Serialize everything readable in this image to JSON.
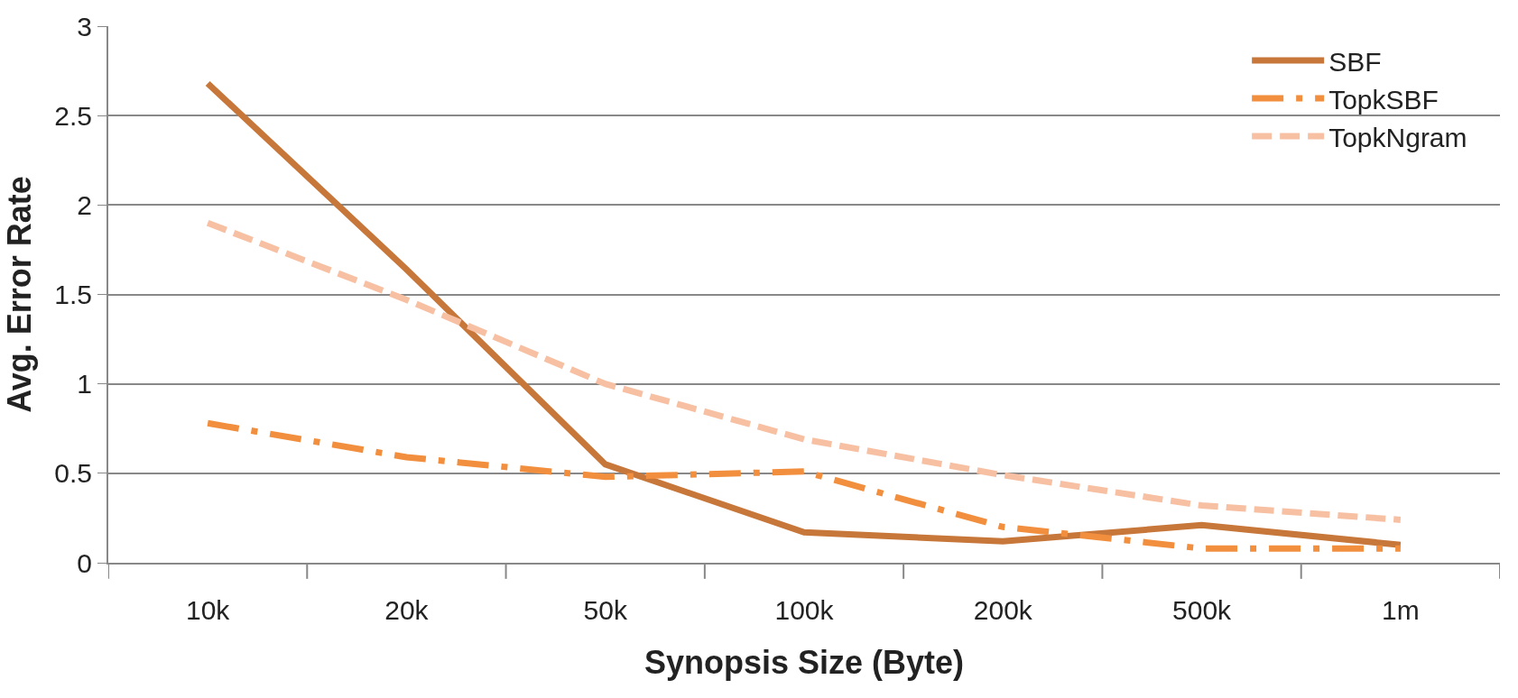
{
  "chart_data": {
    "type": "line",
    "xlabel": "Synopsis Size (Byte)",
    "ylabel": "Avg. Error Rate",
    "categories": [
      "10k",
      "20k",
      "50k",
      "100k",
      "200k",
      "500k",
      "1m"
    ],
    "series": [
      {
        "name": "SBF",
        "color": "#c8773a",
        "line_style": "solid",
        "values": [
          2.68,
          1.64,
          0.55,
          0.17,
          0.12,
          0.21,
          0.1
        ]
      },
      {
        "name": "TopkSBF",
        "color": "#f28f3e",
        "line_style": "dashdot",
        "values": [
          0.78,
          0.59,
          0.48,
          0.51,
          0.2,
          0.08,
          0.08
        ]
      },
      {
        "name": "TopkNgram",
        "color": "#f7c0a3",
        "line_style": "dashed",
        "values": [
          1.9,
          1.47,
          1.0,
          0.69,
          0.49,
          0.32,
          0.24
        ]
      }
    ],
    "ylim": [
      0,
      3
    ],
    "yticks": [
      0,
      0.5,
      1,
      1.5,
      2,
      2.5,
      3
    ],
    "grid": "y",
    "legend": "top right",
    "marker": "none"
  }
}
